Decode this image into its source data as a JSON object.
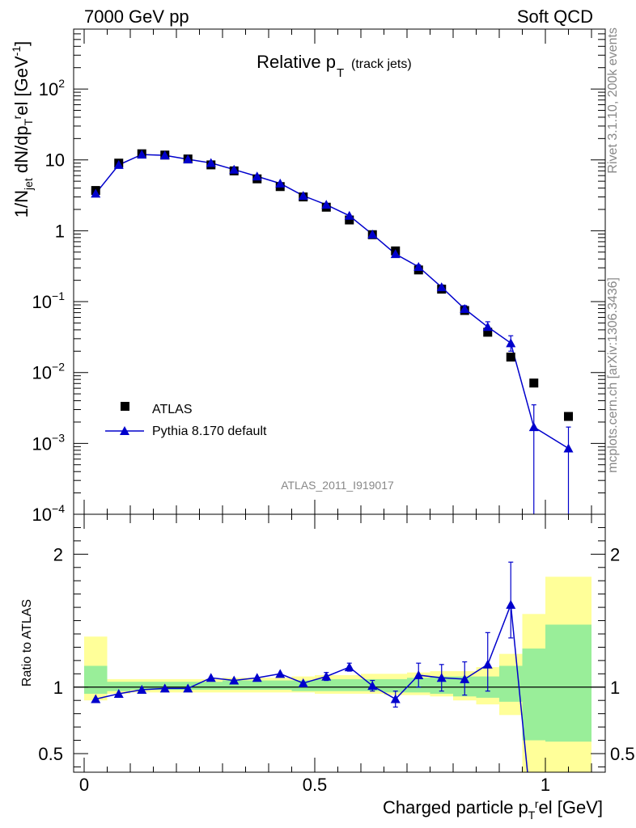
{
  "header": {
    "left": "7000 GeV pp",
    "right": "Soft QCD",
    "side_rivet": "Rivet 3.1.10,  200k events",
    "side_mcplots": "mcplots.cern.ch [arXiv:1306.3436]"
  },
  "chart_data": [
    {
      "type": "scatter",
      "panel": "main",
      "title_main": "Relative p",
      "title_sub": "T",
      "title_suffix": "(track jets)",
      "ylabel": "1/N_jet dN/dp_T^rel [GeV^-1]",
      "yscale": "log",
      "ylim": [
        0.0001,
        700
      ],
      "xlim": [
        -0.02,
        1.1
      ],
      "ytick_labels": {
        "1e-4": [
          "10",
          "−4"
        ],
        "1e-3": [
          "10",
          "−3"
        ],
        "1e-2": [
          "10",
          "−2"
        ],
        "1e-1": [
          "10",
          "−1"
        ],
        "1": [
          "1",
          ""
        ],
        "10": [
          "10",
          ""
        ],
        "100": [
          "10",
          "2"
        ]
      },
      "analysis_label": "ATLAS_2011_I919017",
      "legend": [
        {
          "name": "ATLAS",
          "marker": "square",
          "color": "#000000"
        },
        {
          "name": "Pythia 8.170 default",
          "marker": "triangle",
          "color": "#0000cc"
        }
      ],
      "series": [
        {
          "name": "ATLAS",
          "x": [
            0.025,
            0.075,
            0.125,
            0.175,
            0.225,
            0.275,
            0.325,
            0.375,
            0.425,
            0.475,
            0.525,
            0.575,
            0.625,
            0.675,
            0.725,
            0.775,
            0.825,
            0.875,
            0.925,
            0.975,
            1.05
          ],
          "y": [
            3.7,
            9.0,
            12.2,
            11.7,
            10.3,
            8.5,
            7.0,
            5.4,
            4.2,
            3.0,
            2.15,
            1.42,
            0.88,
            0.52,
            0.28,
            0.15,
            0.075,
            0.037,
            0.0165,
            0.0071,
            0.0024
          ]
        },
        {
          "name": "Pythia 8.170 default",
          "x": [
            0.025,
            0.075,
            0.125,
            0.175,
            0.225,
            0.275,
            0.325,
            0.375,
            0.425,
            0.475,
            0.525,
            0.575,
            0.625,
            0.675,
            0.725,
            0.775,
            0.825,
            0.875,
            0.925,
            0.975,
            1.05
          ],
          "y": [
            3.35,
            8.5,
            11.9,
            11.6,
            10.2,
            9.05,
            7.3,
            5.85,
            4.65,
            3.12,
            2.33,
            1.63,
            0.89,
            0.47,
            0.31,
            0.16,
            0.079,
            0.044,
            0.026,
            0.0017,
            0.00085
          ],
          "err_lo": [
            0,
            0,
            0,
            0,
            0,
            0,
            0,
            0,
            0,
            0,
            0,
            0,
            0,
            0.03,
            0.02,
            0.01,
            0.007,
            0.006,
            0.006,
            0.00169,
            0.00084
          ],
          "err_hi": [
            0,
            0,
            0,
            0,
            0,
            0,
            0,
            0,
            0,
            0,
            0,
            0,
            0,
            0.03,
            0.02,
            0.012,
            0.009,
            0.008,
            0.007,
            0.0018,
            0.00085
          ]
        }
      ]
    },
    {
      "type": "line",
      "panel": "ratio",
      "ylabel": "Ratio to ATLAS",
      "xlabel": "Charged particle p_T^rel [GeV]",
      "ylim": [
        0.36,
        2.3
      ],
      "xlim": [
        -0.02,
        1.1
      ],
      "xticks": [
        0,
        0.5,
        1
      ],
      "xtick_labels": [
        "0",
        "0.5",
        "1"
      ],
      "yticks": [
        0.5,
        1,
        2
      ],
      "ytick_labels": [
        "0.5",
        "1",
        "2"
      ],
      "bands": {
        "x_edges": [
          0,
          0.05,
          0.1,
          0.15,
          0.2,
          0.25,
          0.3,
          0.35,
          0.4,
          0.45,
          0.5,
          0.55,
          0.6,
          0.65,
          0.7,
          0.75,
          0.8,
          0.85,
          0.9,
          0.95,
          1.0,
          1.1
        ],
        "yellow_lo": [
          0.9,
          0.95,
          0.96,
          0.96,
          0.96,
          0.96,
          0.96,
          0.96,
          0.96,
          0.96,
          0.95,
          0.95,
          0.95,
          0.94,
          0.94,
          0.93,
          0.9,
          0.87,
          0.79,
          0.3,
          0.3
        ],
        "yellow_hi": [
          1.38,
          1.06,
          1.06,
          1.06,
          1.06,
          1.06,
          1.07,
          1.07,
          1.07,
          1.08,
          1.09,
          1.09,
          1.1,
          1.1,
          1.11,
          1.12,
          1.12,
          1.15,
          1.25,
          1.55,
          1.83
        ],
        "green_lo": [
          0.95,
          0.97,
          0.98,
          0.98,
          0.98,
          0.98,
          0.98,
          0.98,
          0.98,
          0.97,
          0.97,
          0.97,
          0.97,
          0.96,
          0.96,
          0.95,
          0.93,
          0.92,
          0.89,
          0.6,
          0.59
        ],
        "green_hi": [
          1.16,
          1.04,
          1.04,
          1.04,
          1.04,
          1.04,
          1.05,
          1.05,
          1.05,
          1.05,
          1.06,
          1.06,
          1.06,
          1.06,
          1.07,
          1.08,
          1.08,
          1.08,
          1.16,
          1.29,
          1.47
        ]
      },
      "series": [
        {
          "name": "Pythia 8.170 default",
          "x": [
            0.025,
            0.075,
            0.125,
            0.175,
            0.225,
            0.275,
            0.325,
            0.375,
            0.425,
            0.475,
            0.525,
            0.575,
            0.625,
            0.675,
            0.725,
            0.775,
            0.825,
            0.875,
            0.925,
            0.963
          ],
          "y": [
            0.91,
            0.95,
            0.98,
            0.99,
            0.99,
            1.07,
            1.05,
            1.07,
            1.1,
            1.03,
            1.08,
            1.15,
            1.01,
            0.91,
            1.09,
            1.07,
            1.06,
            1.17,
            1.62,
            0.3
          ],
          "err_lo": [
            0,
            0,
            0,
            0,
            0,
            0,
            0,
            0,
            0,
            0,
            0.03,
            0.03,
            0.04,
            0.06,
            0.09,
            0.1,
            0.12,
            0.2,
            0.25,
            0
          ],
          "err_hi": [
            0,
            0,
            0,
            0,
            0,
            0,
            0,
            0,
            0,
            0,
            0.03,
            0.03,
            0.04,
            0.06,
            0.09,
            0.1,
            0.13,
            0.24,
            0.32,
            0
          ]
        }
      ]
    }
  ]
}
